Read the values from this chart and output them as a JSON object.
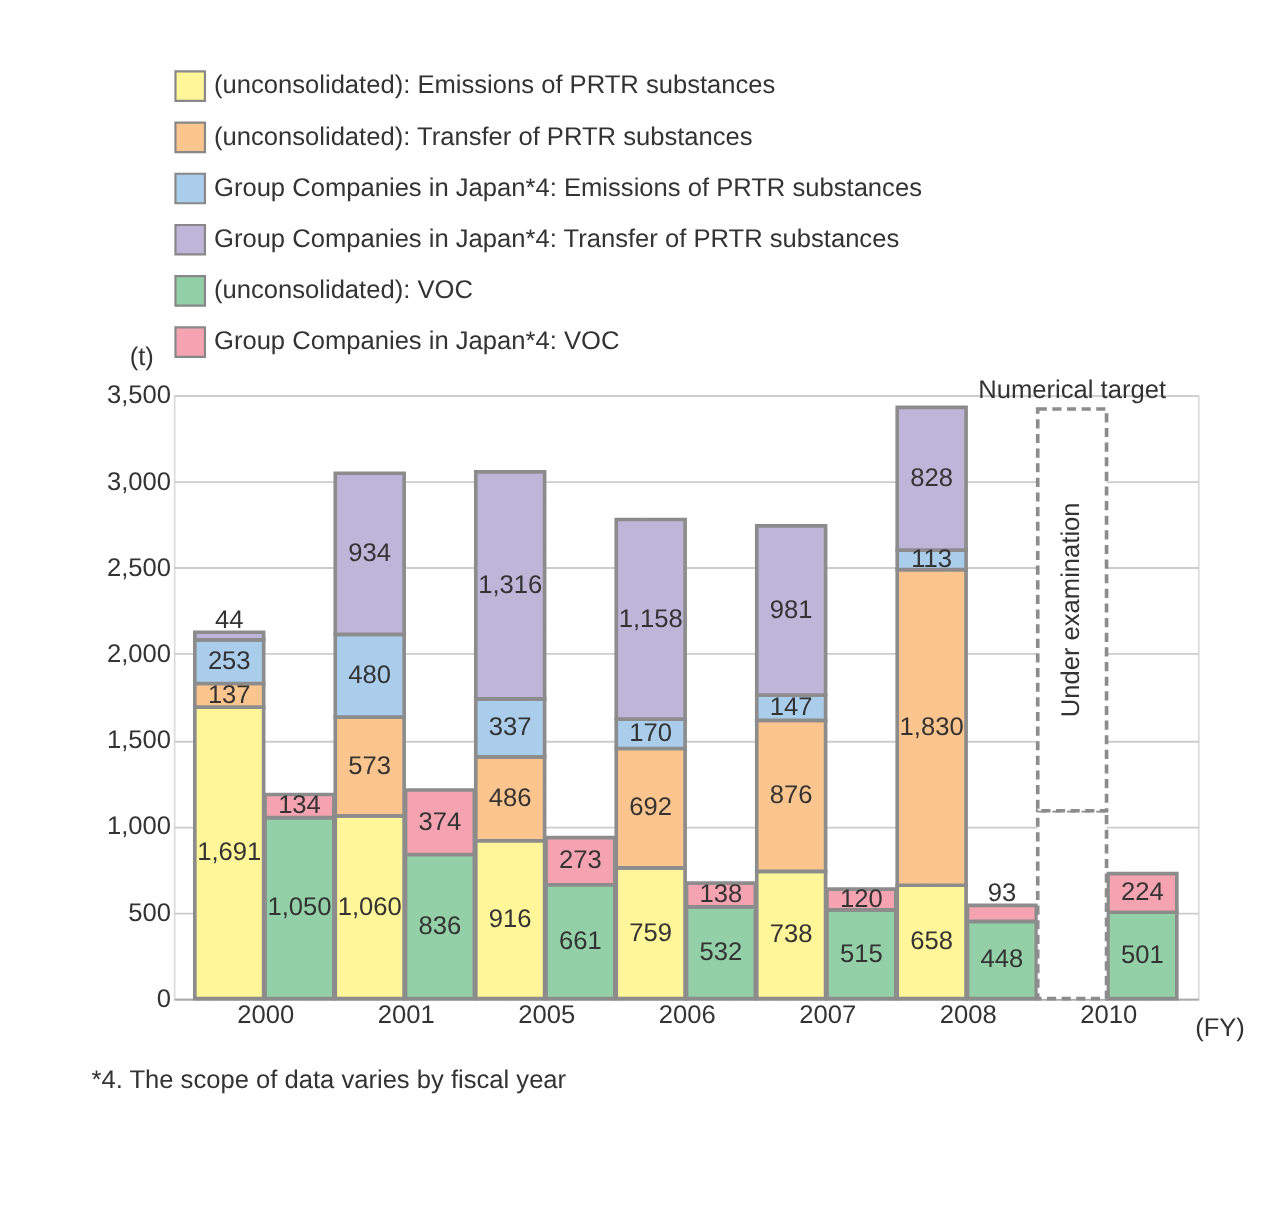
{
  "chart_data": {
    "type": "bar",
    "stacked": true,
    "grid": "y",
    "legend": "top",
    "ylabel": "(t)",
    "xlabel": "(FY)",
    "categories": [
      "2000",
      null,
      "2001",
      null,
      "2005",
      null,
      "2006",
      null,
      "2007",
      null,
      "2008",
      null,
      "2010",
      null
    ],
    "ylim": [
      0,
      3500
    ],
    "yticks": [
      0,
      500,
      {
        "value": 1000,
        "label": "1,000"
      },
      {
        "value": 1500,
        "label": "1,500"
      },
      {
        "value": 2000,
        "label": "2,000"
      },
      {
        "value": 2500,
        "label": "2,500"
      },
      {
        "value": 3000,
        "label": "3,000"
      },
      {
        "value": 3500,
        "label": "3,500"
      }
    ],
    "series": [
      {
        "name": "(unconsolidated): Emissions of PRTR substances",
        "color": "#fff599",
        "values": [
          1691,
          null,
          1060,
          null,
          916,
          null,
          759,
          null,
          738,
          null,
          658,
          null,
          null,
          null
        ],
        "value_labels": [
          "1,691",
          null,
          "1,060",
          null,
          "916",
          null,
          "759",
          null,
          "738",
          null,
          "658",
          null,
          null,
          null
        ]
      },
      {
        "name": "(unconsolidated): Transfer of PRTR substances",
        "color": "#fdc58e",
        "values": [
          137,
          null,
          573,
          null,
          486,
          null,
          692,
          null,
          876,
          null,
          1830,
          null,
          null,
          null
        ],
        "value_labels": [
          "137",
          null,
          "573",
          null,
          "486",
          null,
          "692",
          null,
          "876",
          null,
          "1,830",
          null,
          null,
          null
        ]
      },
      {
        "name": "Group Companies in Japan*4: Emissions of PRTR substances",
        "color": "#abcdec",
        "values": [
          253,
          null,
          480,
          null,
          337,
          null,
          170,
          null,
          147,
          null,
          113,
          null,
          null,
          null
        ],
        "value_labels": [
          "253",
          null,
          "480",
          null,
          "337",
          null,
          "170",
          null,
          "147",
          null,
          "113",
          null,
          null,
          null
        ]
      },
      {
        "name": "Group Companies in Japan*4: Transfer of PRTR substances",
        "color": "#bdb6d8",
        "values": [
          44,
          null,
          934,
          null,
          1316,
          null,
          1158,
          null,
          981,
          null,
          828,
          null,
          null,
          null
        ],
        "value_labels": [
          "44",
          null,
          "934",
          null,
          "1,316",
          null,
          "1,158",
          null,
          "981",
          null,
          "828",
          null,
          null,
          null
        ]
      },
      {
        "name": "(unconsolidated): VOC",
        "color": "#93d0a8",
        "values": [
          null,
          1050,
          null,
          836,
          null,
          661,
          null,
          532,
          null,
          515,
          null,
          448,
          null,
          501
        ],
        "value_labels": [
          null,
          "1,050",
          null,
          "836",
          null,
          "661",
          null,
          "532",
          null,
          "515",
          null,
          "448",
          null,
          "501"
        ]
      },
      {
        "name": "Group Companies in Japan*4: VOC",
        "color": "#f5a3b0",
        "values": [
          null,
          134,
          null,
          374,
          null,
          273,
          null,
          138,
          null,
          120,
          null,
          93,
          null,
          224
        ],
        "value_labels": [
          null,
          "134",
          null,
          "374",
          null,
          "273",
          null,
          "138",
          null,
          "120",
          null,
          "93",
          null,
          "224"
        ]
      },
      {
        "color": "#ffffff",
        "line_style": "dashed",
        "values": [
          null,
          null,
          null,
          null,
          null,
          null,
          null,
          null,
          null,
          null,
          null,
          null,
          1090,
          null
        ]
      },
      {
        "color": "#ffffff",
        "line_style": "dashed",
        "values": [
          null,
          null,
          null,
          null,
          null,
          null,
          null,
          null,
          null,
          null,
          null,
          null,
          2330,
          null
        ]
      }
    ],
    "annotations": [
      "Numerical target",
      "Under examination",
      "*4. The scope of data varies by fiscal year"
    ]
  }
}
